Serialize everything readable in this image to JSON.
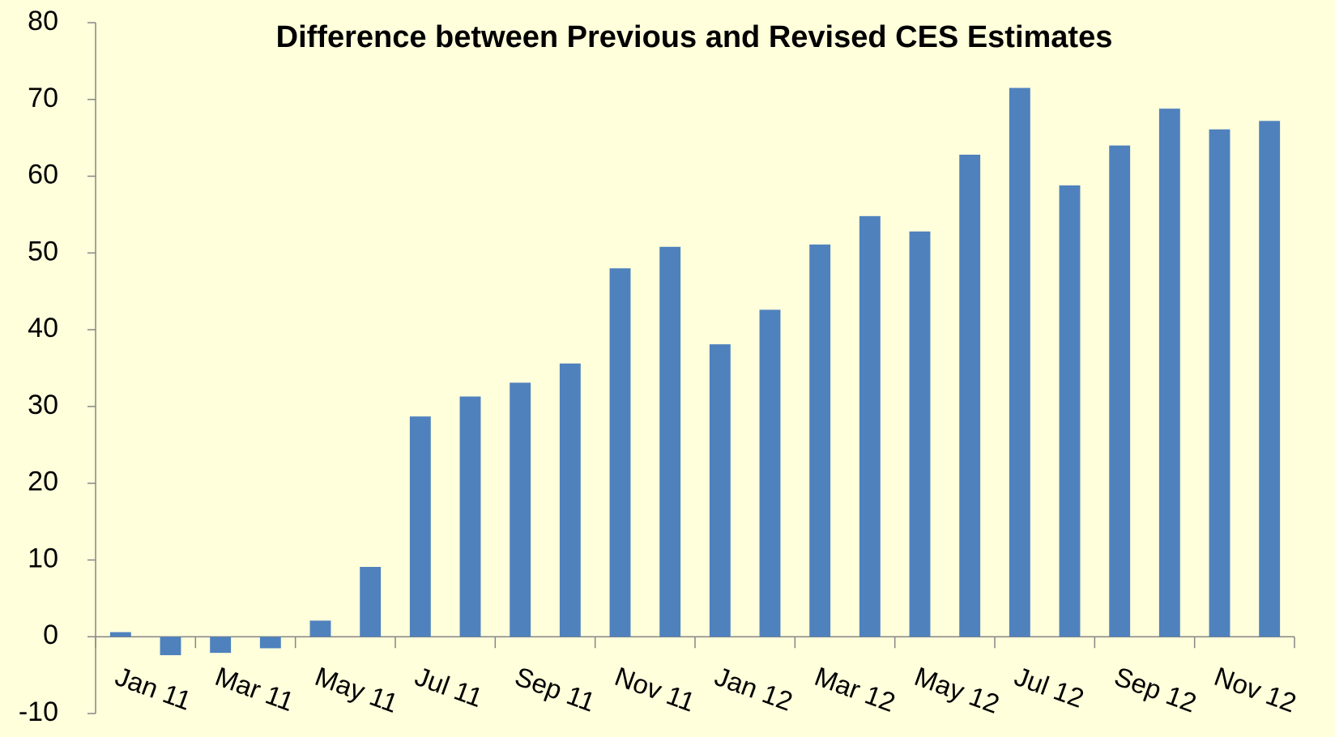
{
  "chart_data": {
    "type": "bar",
    "title": "Difference between Previous and Revised CES Estimates",
    "categories": [
      "Jan 11",
      null,
      "Mar 11",
      null,
      "May 11",
      null,
      "Jul 11",
      null,
      "Sep 11",
      null,
      "Nov 11",
      null,
      "Jan 12",
      null,
      "Mar 12",
      null,
      "May 12",
      null,
      "Jul 12",
      null,
      "Sep 12",
      null,
      "Nov 12",
      null
    ],
    "values": [
      0.6,
      -2.4,
      -2.1,
      -1.5,
      2.1,
      9.1,
      28.7,
      31.3,
      33.1,
      35.6,
      48.0,
      50.8,
      38.1,
      42.6,
      51.1,
      54.8,
      52.8,
      62.8,
      71.5,
      58.8,
      64.0,
      68.8,
      66.1,
      67.2
    ],
    "color": "#4f81bd",
    "ylim": [
      -10,
      80
    ],
    "yticks": [
      -10,
      0,
      10,
      20,
      30,
      40,
      50,
      60,
      70,
      80
    ],
    "grid": false
  }
}
